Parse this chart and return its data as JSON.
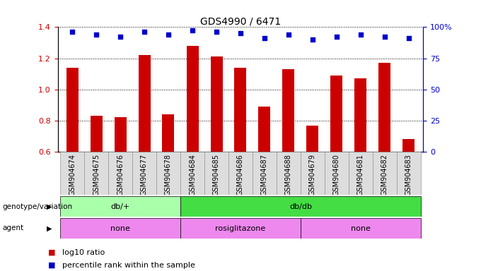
{
  "title": "GDS4990 / 6471",
  "samples": [
    "GSM904674",
    "GSM904675",
    "GSM904676",
    "GSM904677",
    "GSM904678",
    "GSM904684",
    "GSM904685",
    "GSM904686",
    "GSM904687",
    "GSM904688",
    "GSM904679",
    "GSM904680",
    "GSM904681",
    "GSM904682",
    "GSM904683"
  ],
  "log10_ratio": [
    1.14,
    0.83,
    0.82,
    1.22,
    0.84,
    1.28,
    1.21,
    1.14,
    0.89,
    1.13,
    0.77,
    1.09,
    1.07,
    1.17,
    0.68
  ],
  "percentile_y": [
    1.37,
    1.35,
    1.34,
    1.37,
    1.35,
    1.38,
    1.37,
    1.36,
    1.33,
    1.35,
    1.32,
    1.34,
    1.35,
    1.34,
    1.33
  ],
  "bar_color": "#cc0000",
  "dot_color": "#0000cc",
  "ylim": [
    0.6,
    1.4
  ],
  "yticks_left": [
    0.6,
    0.8,
    1.0,
    1.2,
    1.4
  ],
  "yticks_right_vals": [
    0,
    25,
    50,
    75,
    100
  ],
  "yticks_right_labels": [
    "0",
    "25",
    "50",
    "75",
    "100%"
  ],
  "genotype_groups": [
    {
      "label": "db/+",
      "start": 0,
      "end": 5,
      "color": "#aaffaa"
    },
    {
      "label": "db/db",
      "start": 5,
      "end": 15,
      "color": "#44dd44"
    }
  ],
  "agent_groups": [
    {
      "label": "none",
      "start": 0,
      "end": 5,
      "color": "#ee88ee"
    },
    {
      "label": "rosiglitazone",
      "start": 5,
      "end": 10,
      "color": "#ee88ee"
    },
    {
      "label": "none",
      "start": 10,
      "end": 15,
      "color": "#ee88ee"
    }
  ],
  "bar_width": 0.5,
  "background_color": "#ffffff",
  "title_fontsize": 10,
  "tick_label_fontsize": 7,
  "annot_fontsize": 8
}
